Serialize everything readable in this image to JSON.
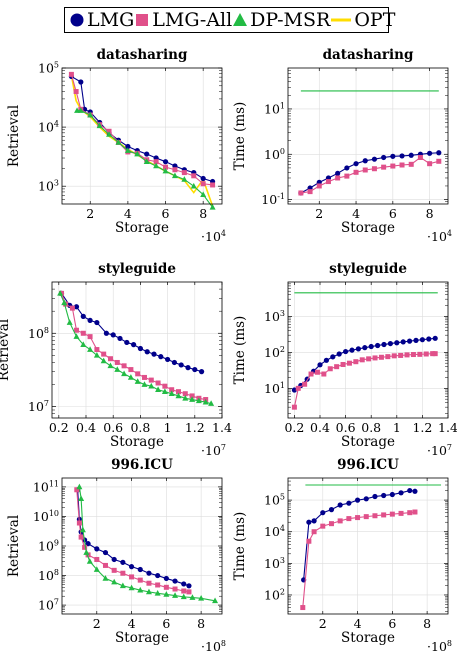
{
  "legend": {
    "placement": "top",
    "items": [
      {
        "name": "LMG",
        "color": "#00008b",
        "marker": "circle"
      },
      {
        "name": "LMG-All",
        "color": "#e0508a",
        "marker": "square"
      },
      {
        "name": "DP-MSR",
        "color": "#22bb44",
        "marker": "triangle"
      },
      {
        "name": "OPT",
        "color": "#ffdd00",
        "marker": "line"
      }
    ]
  },
  "chart_data": [
    {
      "id": "ds-retrieval",
      "type": "line",
      "title": "datasharing",
      "xlabel": "Storage",
      "ylabel": "Retrieval",
      "xmultiplier": "·10^4",
      "xlim": [
        0.5,
        9
      ],
      "ylim": [
        500,
        100000
      ],
      "yscale": "log",
      "xticks": [
        2,
        4,
        6,
        8
      ],
      "xticklabels": [
        "2",
        "4",
        "6",
        "8"
      ],
      "yticks": [
        1000,
        10000,
        100000
      ],
      "yticklabels": [
        "10^3",
        "10^4",
        "10^5"
      ],
      "grid": true,
      "series": [
        {
          "name": "OPT",
          "x": [
            1.0,
            1.25,
            1.5,
            2.0,
            2.5,
            3.0,
            3.5,
            4.0,
            4.5,
            5.0,
            5.5,
            6.0,
            6.5,
            7.0,
            7.5,
            8.0,
            8.5
          ],
          "y": [
            75000,
            28000,
            20000,
            15000,
            10000,
            7000,
            5500,
            4200,
            3400,
            2700,
            2200,
            1800,
            1500,
            1250,
            780,
            1300,
            460
          ]
        },
        {
          "name": "LMG",
          "x": [
            1.0,
            1.5,
            1.7,
            2.0,
            2.5,
            3.0,
            3.5,
            4.0,
            4.5,
            5.0,
            5.5,
            6.0,
            6.5,
            7.0,
            7.5,
            8.0,
            8.5
          ],
          "y": [
            72000,
            58000,
            20000,
            18000,
            12000,
            8000,
            6000,
            4700,
            4000,
            3500,
            3000,
            2600,
            2200,
            1900,
            1700,
            1350,
            1200
          ]
        },
        {
          "name": "LMG-All",
          "x": [
            1.0,
            1.25,
            1.5,
            2.0,
            2.5,
            3.0,
            3.5,
            4.0,
            4.5,
            5.0,
            5.5,
            6.0,
            6.5,
            7.0,
            7.5,
            8.0,
            8.5
          ],
          "y": [
            78000,
            40000,
            20000,
            16000,
            11000,
            8500,
            5500,
            3800,
            3600,
            2800,
            2600,
            2100,
            1900,
            1700,
            1500,
            1100,
            1050
          ]
        },
        {
          "name": "DP-MSR",
          "x": [
            1.3,
            1.5,
            2.0,
            2.5,
            3.0,
            3.5,
            4.0,
            4.5,
            5.0,
            5.5,
            6.0,
            6.5,
            7.0,
            7.5,
            8.0,
            8.5
          ],
          "y": [
            19000,
            19000,
            16000,
            10500,
            7500,
            5500,
            4000,
            3500,
            2600,
            2200,
            1800,
            1500,
            1300,
            1000,
            720,
            440
          ]
        }
      ]
    },
    {
      "id": "ds-time",
      "type": "line",
      "title": "datasharing",
      "xlabel": "Storage",
      "ylabel": "Time (ms)",
      "xmultiplier": "·10^4",
      "xlim": [
        0.3,
        9
      ],
      "ylim": [
        0.08,
        80
      ],
      "yscale": "log",
      "xticks": [
        2,
        4,
        6,
        8
      ],
      "xticklabels": [
        "2",
        "4",
        "6",
        "8"
      ],
      "yticks": [
        0.1,
        1,
        10
      ],
      "yticklabels": [
        "10^-1",
        "10^0",
        "10^1"
      ],
      "grid": true,
      "series": [
        {
          "name": "DP-MSR",
          "x": [
            1.0,
            8.5
          ],
          "y": [
            25,
            25
          ],
          "markers": false
        },
        {
          "name": "LMG",
          "x": [
            1.0,
            1.5,
            2.0,
            2.5,
            3.0,
            3.5,
            4.0,
            4.5,
            5.0,
            5.5,
            6.0,
            6.5,
            7.0,
            7.5,
            8.0,
            8.5
          ],
          "y": [
            0.14,
            0.18,
            0.24,
            0.3,
            0.38,
            0.5,
            0.62,
            0.72,
            0.78,
            0.85,
            0.9,
            0.92,
            0.95,
            1.0,
            1.05,
            1.08
          ]
        },
        {
          "name": "LMG-All",
          "x": [
            1.0,
            1.5,
            2.0,
            2.5,
            3.0,
            3.5,
            4.0,
            4.5,
            5.0,
            5.5,
            6.0,
            6.5,
            7.0,
            7.5,
            8.0,
            8.5
          ],
          "y": [
            0.14,
            0.15,
            0.2,
            0.25,
            0.3,
            0.33,
            0.4,
            0.45,
            0.48,
            0.52,
            0.55,
            0.58,
            0.6,
            0.85,
            0.62,
            0.7
          ]
        }
      ]
    },
    {
      "id": "sg-retrieval",
      "type": "line",
      "title": "styleguide",
      "xlabel": "Storage",
      "ylabel": "Retrieval",
      "xmultiplier": "·10^7",
      "xlim": [
        0.15,
        1.4
      ],
      "ylim": [
        7000000,
        500000000
      ],
      "yscale": "log",
      "xticks": [
        0.2,
        0.4,
        0.6,
        0.8,
        1.0,
        1.2,
        1.4
      ],
      "xticklabels": [
        "0.2",
        "0.4",
        "0.6",
        "0.8",
        "1",
        "1.2",
        "1.4"
      ],
      "yticks": [
        10000000,
        100000000
      ],
      "yticklabels": [
        "10^7",
        "10^8"
      ],
      "grid": true,
      "series": [
        {
          "name": "LMG",
          "x": [
            0.22,
            0.28,
            0.33,
            0.38,
            0.43,
            0.48,
            0.55,
            0.6,
            0.65,
            0.7,
            0.75,
            0.8,
            0.85,
            0.9,
            0.95,
            1.0,
            1.05,
            1.1,
            1.15,
            1.2,
            1.25
          ],
          "y": [
            350000000,
            240000000,
            230000000,
            170000000,
            150000000,
            140000000,
            100000000,
            95000000,
            85000000,
            75000000,
            70000000,
            62000000,
            56000000,
            52000000,
            48000000,
            44000000,
            40000000,
            37000000,
            34000000,
            32000000,
            30000000
          ]
        },
        {
          "name": "LMG-All",
          "x": [
            0.22,
            0.25,
            0.3,
            0.33,
            0.38,
            0.43,
            0.48,
            0.53,
            0.58,
            0.63,
            0.68,
            0.73,
            0.78,
            0.83,
            0.88,
            0.93,
            0.98,
            1.03,
            1.08,
            1.13,
            1.18,
            1.23,
            1.28
          ],
          "y": [
            350000000,
            250000000,
            220000000,
            110000000,
            100000000,
            90000000,
            60000000,
            52000000,
            45000000,
            40000000,
            36000000,
            32000000,
            28000000,
            25000000,
            23000000,
            21000000,
            19000000,
            17000000,
            16000000,
            15000000,
            14000000,
            13000000,
            12500000
          ]
        },
        {
          "name": "DP-MSR",
          "x": [
            0.21,
            0.24,
            0.28,
            0.33,
            0.38,
            0.43,
            0.48,
            0.53,
            0.58,
            0.63,
            0.68,
            0.73,
            0.78,
            0.83,
            0.88,
            0.93,
            0.98,
            1.03,
            1.08,
            1.13,
            1.18,
            1.23,
            1.28,
            1.32
          ],
          "y": [
            350000000,
            260000000,
            140000000,
            90000000,
            70000000,
            60000000,
            50000000,
            42000000,
            36000000,
            32000000,
            28000000,
            25000000,
            22000000,
            20000000,
            19000000,
            17000000,
            16000000,
            15000000,
            14000000,
            13000000,
            12500000,
            12000000,
            11500000,
            11000000
          ]
        }
      ]
    },
    {
      "id": "sg-time",
      "type": "line",
      "title": "styleguide",
      "xlabel": "Storage",
      "ylabel": "Time (ms)",
      "xmultiplier": "·10^7",
      "xlim": [
        0.15,
        1.4
      ],
      "ylim": [
        1.5,
        9000
      ],
      "yscale": "log",
      "xticks": [
        0.2,
        0.4,
        0.6,
        0.8,
        1.0,
        1.2,
        1.4
      ],
      "xticklabels": [
        "0.2",
        "0.4",
        "0.6",
        "0.8",
        "1",
        "1.2",
        "1.4"
      ],
      "yticks": [
        10,
        100,
        1000
      ],
      "yticklabels": [
        "10^1",
        "10^2",
        "10^3"
      ],
      "grid": true,
      "series": [
        {
          "name": "DP-MSR",
          "x": [
            0.2,
            1.32
          ],
          "y": [
            4500,
            4500
          ],
          "markers": false
        },
        {
          "name": "LMG",
          "x": [
            0.2,
            0.25,
            0.3,
            0.35,
            0.4,
            0.45,
            0.5,
            0.55,
            0.6,
            0.65,
            0.7,
            0.75,
            0.8,
            0.85,
            0.9,
            0.95,
            1.0,
            1.05,
            1.1,
            1.15,
            1.2,
            1.25,
            1.3
          ],
          "y": [
            9,
            12,
            18,
            30,
            45,
            60,
            75,
            90,
            105,
            115,
            125,
            135,
            145,
            155,
            165,
            175,
            185,
            195,
            205,
            215,
            225,
            235,
            245
          ]
        },
        {
          "name": "LMG-All",
          "x": [
            0.2,
            0.23,
            0.28,
            0.33,
            0.38,
            0.43,
            0.48,
            0.53,
            0.58,
            0.63,
            0.68,
            0.73,
            0.78,
            0.83,
            0.88,
            0.93,
            0.98,
            1.03,
            1.08,
            1.13,
            1.18,
            1.23,
            1.28,
            1.3
          ],
          "y": [
            3,
            10,
            13,
            25,
            28,
            25,
            35,
            40,
            46,
            50,
            55,
            62,
            66,
            70,
            73,
            76,
            80,
            82,
            85,
            87,
            88,
            90,
            92,
            92
          ]
        }
      ]
    },
    {
      "id": "icu-retrieval",
      "type": "line",
      "title": "996.ICU",
      "xlabel": "Storage",
      "ylabel": "Retrieval",
      "xmultiplier": "·10^8",
      "xlim": [
        0,
        9.2
      ],
      "ylim": [
        5000000,
        200000000000
      ],
      "yscale": "log",
      "xticks": [
        2,
        4,
        6,
        8
      ],
      "xticklabels": [
        "2",
        "4",
        "6",
        "8"
      ],
      "yticks": [
        10000000,
        100000000,
        1000000000,
        10000000000,
        100000000000
      ],
      "yticklabels": [
        "10^7",
        "10^8",
        "10^9",
        "10^10",
        "10^11"
      ],
      "grid": true,
      "series": [
        {
          "name": "LMG",
          "x": [
            0.9,
            1.0,
            1.1,
            1.3,
            1.5,
            2.0,
            2.5,
            3.0,
            3.5,
            4.0,
            4.5,
            5.0,
            5.5,
            6.0,
            6.5,
            7.0,
            7.3
          ],
          "y": [
            80000000000,
            8000000000,
            3000000000,
            1600000000,
            1200000000,
            800000000,
            600000000,
            350000000,
            280000000,
            200000000,
            160000000,
            120000000,
            100000000,
            80000000,
            65000000,
            52000000,
            45000000
          ]
        },
        {
          "name": "LMG-All",
          "x": [
            0.85,
            1.0,
            1.1,
            1.3,
            1.5,
            2.0,
            2.5,
            3.0,
            3.5,
            4.0,
            4.5,
            5.0,
            5.5,
            6.0,
            6.5,
            7.0,
            7.3
          ],
          "y": [
            80000000000,
            6000000000,
            2000000000,
            900000000,
            500000000,
            350000000,
            220000000,
            150000000,
            120000000,
            90000000,
            70000000,
            55000000,
            48000000,
            40000000,
            35000000,
            30000000,
            28000000
          ]
        },
        {
          "name": "DP-MSR",
          "x": [
            1.0,
            1.1,
            1.2,
            1.4,
            1.6,
            2.0,
            2.5,
            3.0,
            3.5,
            4.0,
            4.5,
            5.0,
            5.5,
            6.0,
            6.5,
            7.0,
            7.5,
            8.0,
            8.8
          ],
          "y": [
            100000000000,
            40000000000,
            3500000000,
            600000000,
            300000000,
            160000000,
            80000000,
            60000000,
            45000000,
            38000000,
            32000000,
            28000000,
            25000000,
            23000000,
            21000000,
            19000000,
            18000000,
            17000000,
            14000000
          ]
        }
      ]
    },
    {
      "id": "icu-time",
      "type": "line",
      "title": "996.ICU",
      "xlabel": "Storage",
      "ylabel": "Time (ms)",
      "xmultiplier": "·10^8",
      "xlim": [
        0,
        9.2
      ],
      "ylim": [
        25,
        500000
      ],
      "yscale": "log",
      "xticks": [
        2,
        4,
        6,
        8
      ],
      "xticklabels": [
        "2",
        "4",
        "6",
        "8"
      ],
      "yticks": [
        100,
        1000,
        10000,
        100000
      ],
      "yticklabels": [
        "10^2",
        "10^3",
        "10^4",
        "10^5"
      ],
      "grid": true,
      "series": [
        {
          "name": "DP-MSR",
          "x": [
            1.0,
            8.8
          ],
          "y": [
            300000,
            300000
          ],
          "markers": false
        },
        {
          "name": "LMG",
          "x": [
            0.9,
            1.2,
            1.5,
            2.0,
            2.5,
            3.0,
            3.5,
            4.0,
            4.5,
            5.0,
            5.5,
            6.0,
            6.5,
            7.0,
            7.3
          ],
          "y": [
            300,
            20000,
            22000,
            40000,
            50000,
            70000,
            80000,
            100000,
            110000,
            130000,
            140000,
            150000,
            170000,
            200000,
            190000
          ]
        },
        {
          "name": "LMG-All",
          "x": [
            0.85,
            1.2,
            1.5,
            2.0,
            2.5,
            3.0,
            3.5,
            4.0,
            4.5,
            5.0,
            5.5,
            6.0,
            6.5,
            7.0,
            7.3
          ],
          "y": [
            40,
            5000,
            10000,
            15000,
            18000,
            22000,
            26000,
            28000,
            30000,
            32000,
            34000,
            36000,
            38000,
            40000,
            42000
          ]
        }
      ]
    }
  ]
}
